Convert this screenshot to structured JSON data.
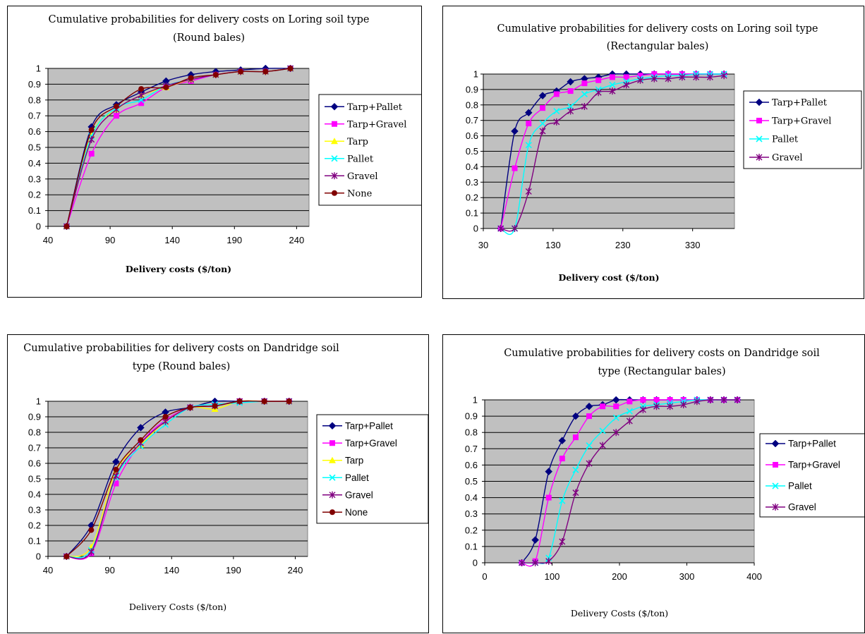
{
  "series_colors": {
    "Tarp+Pallet": "#000080",
    "Tarp+Gravel": "#ff00ff",
    "Tarp": "#ffff00",
    "Pallet": "#00ffff",
    "Gravel": "#800080",
    "None": "#800000"
  },
  "series_markers": {
    "Tarp+Pallet": "diamond",
    "Tarp+Gravel": "square",
    "Tarp": "triangle",
    "Pallet": "x",
    "Gravel": "star",
    "None": "circle"
  },
  "chart_data": [
    {
      "type": "line",
      "title": [
        "Cumulative probabilities for delivery costs on Loring soil type",
        "(Round bales)"
      ],
      "xlabel": "Delivery costs ($/ton)",
      "xlabel_bold": true,
      "ylabel": "",
      "xlim": [
        40,
        250
      ],
      "ylim": [
        0,
        1
      ],
      "xticks": [
        40,
        90,
        140,
        190,
        240
      ],
      "yticks": [
        0,
        0.1,
        0.2,
        0.3,
        0.4,
        0.5,
        0.6,
        0.7,
        0.8,
        0.9,
        1
      ],
      "grid": "horizontal",
      "plot_background": "#c0c0c0",
      "legend": "right",
      "legend_font": "serif",
      "series": [
        {
          "name": "Tarp+Pallet",
          "x": [
            55,
            75,
            95,
            115,
            135,
            155,
            175,
            195,
            215,
            235
          ],
          "y": [
            0,
            0.63,
            0.77,
            0.85,
            0.92,
            0.96,
            0.98,
            0.99,
            1.0,
            1.0
          ]
        },
        {
          "name": "Tarp+Gravel",
          "x": [
            55,
            75,
            95,
            115,
            135,
            155,
            175,
            195,
            215,
            235
          ],
          "y": [
            0,
            0.46,
            0.7,
            0.78,
            0.88,
            0.92,
            0.96,
            0.98,
            0.98,
            1.0
          ]
        },
        {
          "name": "Tarp",
          "x": [
            55,
            75,
            95,
            115,
            135,
            155,
            175,
            195,
            215,
            235
          ],
          "y": [
            0,
            0.58,
            0.74,
            0.83,
            0.88,
            0.93,
            0.96,
            0.98,
            0.98,
            1.0
          ]
        },
        {
          "name": "Pallet",
          "x": [
            55,
            75,
            95,
            115,
            135,
            155,
            175,
            195,
            215,
            235
          ],
          "y": [
            0,
            0.57,
            0.75,
            0.8,
            0.89,
            0.93,
            0.96,
            0.98,
            0.98,
            1.0
          ]
        },
        {
          "name": "Gravel",
          "x": [
            55,
            75,
            95,
            115,
            135,
            155,
            175,
            195,
            215,
            235
          ],
          "y": [
            0,
            0.55,
            0.74,
            0.83,
            0.89,
            0.93,
            0.96,
            0.98,
            0.98,
            1.0
          ]
        },
        {
          "name": "None",
          "x": [
            55,
            75,
            95,
            115,
            135,
            155,
            175,
            195,
            215,
            235
          ],
          "y": [
            0,
            0.61,
            0.76,
            0.87,
            0.88,
            0.94,
            0.96,
            0.98,
            0.98,
            1.0
          ]
        }
      ]
    },
    {
      "type": "line",
      "title": [
        "Cumulative probabilities for delivery costs on Loring soil type",
        "(Rectangular bales)"
      ],
      "xlabel": "Delivery cost ($/ton)",
      "xlabel_bold": true,
      "ylabel": "",
      "xlim": [
        30,
        390
      ],
      "ylim": [
        0,
        1
      ],
      "xticks": [
        30,
        130,
        230,
        330
      ],
      "yticks": [
        0,
        0.1,
        0.2,
        0.3,
        0.4,
        0.5,
        0.6,
        0.7,
        0.8,
        0.9,
        1
      ],
      "grid": "horizontal",
      "plot_background": "#c0c0c0",
      "legend": "right",
      "legend_font": "serif",
      "series": [
        {
          "name": "Tarp+Pallet",
          "x": [
            55,
            75,
            95,
            115,
            135,
            155,
            175,
            195,
            215,
            235,
            255,
            275,
            295,
            315,
            335,
            355,
            375
          ],
          "y": [
            0,
            0.63,
            0.75,
            0.86,
            0.89,
            0.95,
            0.97,
            0.98,
            1.0,
            1.0,
            1.0,
            1.0,
            1.0,
            1.0,
            1.0,
            1.0,
            1.0
          ]
        },
        {
          "name": "Tarp+Gravel",
          "x": [
            55,
            75,
            95,
            115,
            135,
            155,
            175,
            195,
            215,
            235,
            255,
            275,
            295,
            315,
            335,
            355,
            375
          ],
          "y": [
            0,
            0.39,
            0.68,
            0.78,
            0.87,
            0.89,
            0.94,
            0.96,
            0.98,
            0.98,
            0.99,
            1.0,
            1.0,
            1.0,
            1.0,
            1.0,
            1.0
          ]
        },
        {
          "name": "Pallet",
          "x": [
            55,
            75,
            95,
            115,
            135,
            155,
            175,
            195,
            215,
            235,
            255,
            275,
            295,
            315,
            335,
            355,
            375
          ],
          "y": [
            0,
            0,
            0.54,
            0.68,
            0.76,
            0.79,
            0.87,
            0.9,
            0.93,
            0.95,
            0.97,
            0.98,
            0.99,
            0.99,
            1.0,
            1.0,
            1.0
          ]
        },
        {
          "name": "Gravel",
          "x": [
            55,
            75,
            95,
            115,
            135,
            155,
            175,
            195,
            215,
            235,
            255,
            275,
            295,
            315,
            335,
            355,
            375
          ],
          "y": [
            0,
            0,
            0.24,
            0.63,
            0.69,
            0.76,
            0.79,
            0.88,
            0.89,
            0.93,
            0.96,
            0.97,
            0.97,
            0.98,
            0.98,
            0.98,
            0.99
          ]
        }
      ]
    },
    {
      "type": "line",
      "title": [
        "Cumulative probabilities for delivery costs on Dandridge soil",
        "type (Round bales)"
      ],
      "xlabel": "Delivery Costs ($/ton)",
      "xlabel_bold": false,
      "ylabel": "",
      "xlim": [
        40,
        250
      ],
      "ylim": [
        0,
        1
      ],
      "xticks": [
        40,
        90,
        140,
        190,
        240
      ],
      "yticks": [
        0,
        0.1,
        0.2,
        0.3,
        0.4,
        0.5,
        0.6,
        0.7,
        0.8,
        0.9,
        1
      ],
      "grid": "horizontal",
      "plot_background": "#c0c0c0",
      "legend": "right",
      "legend_font": "sans",
      "series": [
        {
          "name": "Tarp+Pallet",
          "x": [
            55,
            75,
            95,
            115,
            135,
            155,
            175,
            195,
            215,
            235
          ],
          "y": [
            0,
            0.2,
            0.61,
            0.83,
            0.93,
            0.96,
            1.0,
            1.0,
            1.0,
            1.0
          ]
        },
        {
          "name": "Tarp+Gravel",
          "x": [
            55,
            75,
            95,
            115,
            135,
            155,
            175,
            195,
            215,
            235
          ],
          "y": [
            0,
            0.02,
            0.47,
            0.73,
            0.88,
            0.96,
            0.97,
            1.0,
            1.0,
            1.0
          ]
        },
        {
          "name": "Tarp",
          "x": [
            55,
            75,
            95,
            115,
            135,
            155,
            175,
            195,
            215,
            235
          ],
          "y": [
            0,
            0.06,
            0.55,
            0.72,
            0.87,
            0.96,
            0.95,
            1.0,
            1.0,
            1.0
          ]
        },
        {
          "name": "Pallet",
          "x": [
            55,
            75,
            95,
            115,
            135,
            155,
            175,
            195,
            215,
            235
          ],
          "y": [
            0,
            0.04,
            0.51,
            0.71,
            0.85,
            0.96,
            0.98,
            0.99,
            1.0,
            1.0
          ]
        },
        {
          "name": "Gravel",
          "x": [
            55,
            75,
            95,
            115,
            135,
            155,
            175,
            195,
            215,
            235
          ],
          "y": [
            0,
            0.03,
            0.52,
            0.73,
            0.87,
            0.96,
            0.97,
            1.0,
            1.0,
            1.0
          ]
        },
        {
          "name": "None",
          "x": [
            55,
            75,
            95,
            115,
            135,
            155,
            175,
            195,
            215,
            235
          ],
          "y": [
            0,
            0.17,
            0.56,
            0.75,
            0.9,
            0.96,
            0.97,
            1.0,
            1.0,
            1.0
          ]
        }
      ]
    },
    {
      "type": "line",
      "title": [
        "Cumulative probabilities for delivery costs on Dandridge soil",
        "type (Rectangular bales)"
      ],
      "xlabel": "Delivery Costs ($/ton)",
      "xlabel_bold": false,
      "ylabel": "",
      "xlim": [
        0,
        400
      ],
      "ylim": [
        0,
        1
      ],
      "xticks": [
        0,
        100,
        200,
        300,
        400
      ],
      "yticks": [
        0,
        0.1,
        0.2,
        0.3,
        0.4,
        0.5,
        0.6,
        0.7,
        0.8,
        0.9,
        1
      ],
      "grid": "horizontal",
      "plot_background": "#c0c0c0",
      "legend": "right",
      "legend_font": "sans",
      "series": [
        {
          "name": "Tarp+Pallet",
          "x": [
            55,
            75,
            95,
            115,
            135,
            155,
            175,
            195,
            215,
            235,
            255,
            275,
            295,
            315,
            335,
            355,
            375
          ],
          "y": [
            0,
            0.14,
            0.56,
            0.75,
            0.9,
            0.96,
            0.97,
            1.0,
            1.0,
            1.0,
            1.0,
            1.0,
            1.0,
            1.0,
            1.0,
            1.0,
            1.0
          ]
        },
        {
          "name": "Tarp+Gravel",
          "x": [
            55,
            75,
            95,
            115,
            135,
            155,
            175,
            195,
            215,
            235,
            255,
            275,
            295,
            315,
            335,
            355,
            375
          ],
          "y": [
            0,
            0.01,
            0.4,
            0.64,
            0.77,
            0.9,
            0.96,
            0.96,
            0.99,
            1.0,
            1.0,
            1.0,
            1.0,
            1.0,
            1.0,
            1.0,
            1.0
          ]
        },
        {
          "name": "Pallet",
          "x": [
            55,
            75,
            95,
            115,
            135,
            155,
            175,
            195,
            215,
            235,
            255,
            275,
            295,
            315,
            335,
            355,
            375
          ],
          "y": [
            0,
            0,
            0.03,
            0.38,
            0.57,
            0.72,
            0.81,
            0.89,
            0.93,
            0.96,
            0.97,
            0.98,
            0.99,
            1.0,
            1.0,
            1.0,
            1.0
          ]
        },
        {
          "name": "Gravel",
          "x": [
            55,
            75,
            95,
            115,
            135,
            155,
            175,
            195,
            215,
            235,
            255,
            275,
            295,
            315,
            335,
            355,
            375
          ],
          "y": [
            0,
            0,
            0.01,
            0.13,
            0.43,
            0.61,
            0.72,
            0.8,
            0.87,
            0.94,
            0.96,
            0.96,
            0.97,
            0.99,
            1.0,
            1.0,
            1.0
          ]
        }
      ]
    }
  ]
}
